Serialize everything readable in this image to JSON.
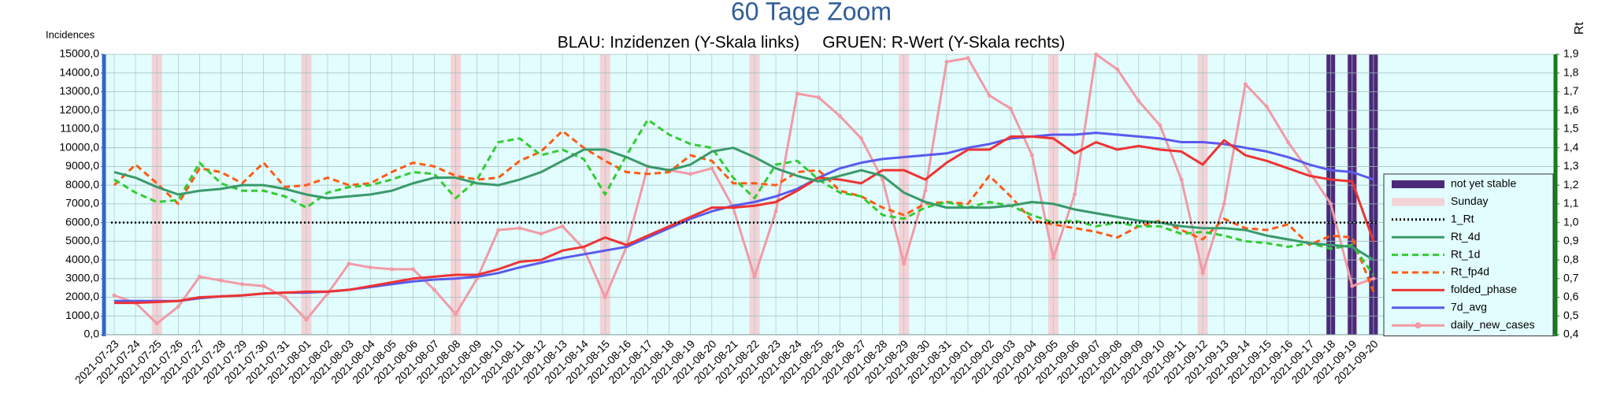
{
  "chart_data": {
    "type": "line",
    "title": "60 Tage Zoom",
    "subtitle": "BLAU: Inzidenzen (Y-Skala links)     GRUEN: R-Wert (Y-Skala rechts)",
    "y_label": "Incidences",
    "y2_label": "Rt",
    "grid": true,
    "background": "#e2fdfd",
    "legend": "lower right",
    "categories": [
      "2021-07-23",
      "2021-07-24",
      "2021-07-25",
      "2021-07-26",
      "2021-07-27",
      "2021-07-28",
      "2021-07-29",
      "2021-07-30",
      "2021-07-31",
      "2021-08-01",
      "2021-08-02",
      "2021-08-03",
      "2021-08-04",
      "2021-08-05",
      "2021-08-06",
      "2021-08-07",
      "2021-08-08",
      "2021-08-09",
      "2021-08-10",
      "2021-08-11",
      "2021-08-12",
      "2021-08-13",
      "2021-08-14",
      "2021-08-15",
      "2021-08-16",
      "2021-08-17",
      "2021-08-18",
      "2021-08-19",
      "2021-08-20",
      "2021-08-21",
      "2021-08-22",
      "2021-08-23",
      "2021-08-24",
      "2021-08-25",
      "2021-08-26",
      "2021-08-27",
      "2021-08-28",
      "2021-08-29",
      "2021-08-30",
      "2021-08-31",
      "2021-09-01",
      "2021-09-02",
      "2021-09-03",
      "2021-09-04",
      "2021-09-05",
      "2021-09-06",
      "2021-09-07",
      "2021-09-08",
      "2021-09-09",
      "2021-09-10",
      "2021-09-11",
      "2021-09-12",
      "2021-09-13",
      "2021-09-14",
      "2021-09-15",
      "2021-09-16",
      "2021-09-17",
      "2021-09-18",
      "2021-09-19",
      "2021-09-20"
    ],
    "ylim": [
      0,
      15000
    ],
    "yticks": [
      {
        "value": 0,
        "label": "0,0"
      },
      {
        "value": 1000,
        "label": "1000,0"
      },
      {
        "value": 2000,
        "label": "2000,0"
      },
      {
        "value": 3000,
        "label": "3000,0"
      },
      {
        "value": 4000,
        "label": "4000,0"
      },
      {
        "value": 5000,
        "label": "5000,0"
      },
      {
        "value": 6000,
        "label": "6000,0"
      },
      {
        "value": 7000,
        "label": "7000,0"
      },
      {
        "value": 8000,
        "label": "8000,0"
      },
      {
        "value": 9000,
        "label": "9000,0"
      },
      {
        "value": 10000,
        "label": "10000,0"
      },
      {
        "value": 11000,
        "label": "11000,0"
      },
      {
        "value": 12000,
        "label": "12000,0"
      },
      {
        "value": 13000,
        "label": "13000,0"
      },
      {
        "value": 14000,
        "label": "14000,0"
      },
      {
        "value": 15000,
        "label": "15000,0"
      }
    ],
    "y2lim": [
      0.4,
      1.9
    ],
    "y2ticks": [
      {
        "value": 0.4,
        "label": "0,4"
      },
      {
        "value": 0.5,
        "label": "0,5"
      },
      {
        "value": 0.6,
        "label": "0,6"
      },
      {
        "value": 0.7,
        "label": "0,7"
      },
      {
        "value": 0.8,
        "label": "0,8"
      },
      {
        "value": 0.9,
        "label": "0,9"
      },
      {
        "value": 1.0,
        "label": "1,0"
      },
      {
        "value": 1.1,
        "label": "1,1"
      },
      {
        "value": 1.2,
        "label": "1,2"
      },
      {
        "value": 1.3,
        "label": "1,3"
      },
      {
        "value": 1.4,
        "label": "1,4"
      },
      {
        "value": 1.5,
        "label": "1,5"
      },
      {
        "value": 1.6,
        "label": "1,6"
      },
      {
        "value": 1.7,
        "label": "1,7"
      },
      {
        "value": 1.8,
        "label": "1,8"
      },
      {
        "value": 1.9,
        "label": "1,9"
      }
    ],
    "bands": [
      {
        "name": "not yet stable",
        "color": "#4b2a7a",
        "categories": [
          "2021-09-18",
          "2021-09-19",
          "2021-09-20"
        ]
      },
      {
        "name": "Sunday",
        "color": "#f3d3d6",
        "categories": [
          "2021-07-25",
          "2021-08-01",
          "2021-08-08",
          "2021-08-15",
          "2021-08-22",
          "2021-08-29",
          "2021-09-05",
          "2021-09-12",
          "2021-09-19"
        ]
      }
    ],
    "series": [
      {
        "name": "1_Rt",
        "color": "#000000",
        "axis": "y2",
        "dash": "dotted",
        "value": 1.0
      },
      {
        "name": "Rt_4d",
        "color": "#3a9a6a",
        "axis": "y2",
        "dash": "solid",
        "values": [
          1.27,
          1.24,
          1.19,
          1.15,
          1.17,
          1.18,
          1.2,
          1.2,
          1.18,
          1.15,
          1.13,
          1.14,
          1.15,
          1.17,
          1.21,
          1.24,
          1.24,
          1.21,
          1.2,
          1.23,
          1.27,
          1.33,
          1.39,
          1.39,
          1.35,
          1.3,
          1.28,
          1.31,
          1.38,
          1.4,
          1.35,
          1.29,
          1.25,
          1.22,
          1.25,
          1.28,
          1.25,
          1.16,
          1.11,
          1.08,
          1.08,
          1.08,
          1.09,
          1.11,
          1.1,
          1.07,
          1.05,
          1.03,
          1.01,
          1.0,
          0.98,
          0.97,
          0.97,
          0.96,
          0.93,
          0.91,
          0.89,
          0.88,
          0.87,
          0.8
        ]
      },
      {
        "name": "Rt_1d",
        "color": "#33cc33",
        "axis": "y2",
        "dash": "dashed",
        "values": [
          1.23,
          1.16,
          1.11,
          1.12,
          1.32,
          1.21,
          1.17,
          1.17,
          1.14,
          1.08,
          1.16,
          1.19,
          1.2,
          1.23,
          1.27,
          1.26,
          1.13,
          1.23,
          1.43,
          1.45,
          1.36,
          1.39,
          1.34,
          1.15,
          1.36,
          1.55,
          1.47,
          1.42,
          1.4,
          1.24,
          1.13,
          1.31,
          1.33,
          1.23,
          1.16,
          1.14,
          1.04,
          1.02,
          1.08,
          1.11,
          1.08,
          1.11,
          1.09,
          1.04,
          1.0,
          1.01,
          0.98,
          1.0,
          0.98,
          0.98,
          0.94,
          0.95,
          0.93,
          0.9,
          0.89,
          0.87,
          0.89,
          0.86,
          0.88,
          0.72
        ]
      },
      {
        "name": "Rt_fp4d",
        "color": "#ff5a14",
        "axis": "y2",
        "dash": "dashed",
        "values": [
          1.2,
          1.31,
          1.21,
          1.1,
          1.29,
          1.27,
          1.21,
          1.32,
          1.19,
          1.2,
          1.24,
          1.2,
          1.21,
          1.27,
          1.32,
          1.3,
          1.25,
          1.23,
          1.24,
          1.33,
          1.38,
          1.49,
          1.4,
          1.33,
          1.27,
          1.26,
          1.27,
          1.36,
          1.33,
          1.21,
          1.21,
          1.2,
          1.27,
          1.28,
          1.17,
          1.14,
          1.08,
          1.04,
          1.1,
          1.11,
          1.1,
          1.25,
          1.14,
          1.01,
          0.99,
          0.97,
          0.95,
          0.92,
          0.98,
          1.01,
          0.96,
          0.91,
          1.02,
          0.97,
          0.96,
          0.99,
          0.88,
          0.93,
          0.92,
          0.63
        ]
      },
      {
        "name": "folded_phase",
        "color": "#ee3333",
        "axis": "y",
        "dash": "solid",
        "values": [
          1700,
          1700,
          1750,
          1800,
          2000,
          2050,
          2100,
          2200,
          2250,
          2300,
          2300,
          2400,
          2600,
          2800,
          3000,
          3100,
          3200,
          3200,
          3500,
          3900,
          4000,
          4500,
          4700,
          5200,
          4800,
          5300,
          5800,
          6300,
          6800,
          6800,
          6900,
          7100,
          7700,
          8400,
          8300,
          8100,
          8800,
          8800,
          8300,
          9200,
          9900,
          9900,
          10600,
          10600,
          10500,
          9700,
          10300,
          9900,
          10100,
          9900,
          9800,
          9100,
          10400,
          9600,
          9300,
          8900,
          8500,
          8300,
          8200,
          5000
        ]
      },
      {
        "name": "7d_avg",
        "color": "#5a5aee",
        "axis": "y",
        "dash": "solid",
        "values": [
          1800,
          1800,
          1800,
          1800,
          1950,
          2050,
          2100,
          2200,
          2250,
          2250,
          2300,
          2400,
          2550,
          2700,
          2850,
          2950,
          3000,
          3100,
          3300,
          3600,
          3850,
          4100,
          4300,
          4500,
          4700,
          5200,
          5700,
          6200,
          6600,
          6900,
          7100,
          7400,
          7800,
          8400,
          8900,
          9200,
          9400,
          9500,
          9600,
          9700,
          10000,
          10200,
          10500,
          10600,
          10700,
          10700,
          10800,
          10700,
          10600,
          10500,
          10300,
          10300,
          10200,
          10000,
          9800,
          9500,
          9100,
          8800,
          8700,
          8300
        ]
      },
      {
        "name": "daily_new_cases",
        "color": "#f29aa6",
        "axis": "y",
        "dash": "solid",
        "markers": true,
        "values": [
          2100,
          1700,
          600,
          1500,
          3100,
          2900,
          2700,
          2600,
          2000,
          800,
          2200,
          3800,
          3600,
          3500,
          3500,
          2400,
          1100,
          3000,
          5600,
          5700,
          5400,
          5800,
          4600,
          2000,
          4700,
          9000,
          8800,
          8600,
          8900,
          6800,
          3100,
          6600,
          12900,
          12700,
          11700,
          10500,
          8300,
          3800,
          7700,
          14600,
          14800,
          12800,
          12100,
          9600,
          4100,
          7500,
          15000,
          14200,
          12500,
          11200,
          8300,
          3300,
          7000,
          13400,
          12200,
          10300,
          8700,
          7000,
          2600,
          3000
        ]
      }
    ]
  }
}
